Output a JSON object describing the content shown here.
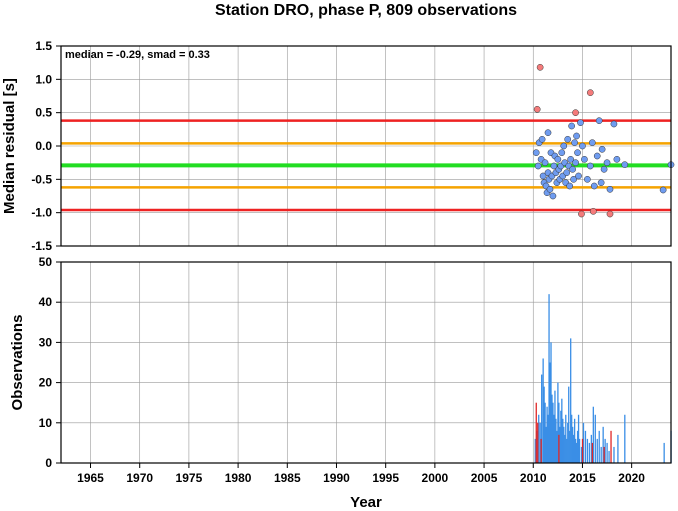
{
  "chart_data": [
    {
      "type": "scatter",
      "title": "Station DRO, phase P, 809 observations",
      "ylabel": "Median residual [s]",
      "xlim": [
        1962,
        2024
      ],
      "ylim": [
        -1.5,
        1.5
      ],
      "yticks": [
        "1.5",
        "1.0",
        "0.5",
        "0.0",
        "-0.5",
        "-1.0",
        "-1.5"
      ],
      "annotation": "median = -0.29, smad = 0.33",
      "grid": true,
      "reference_lines": [
        {
          "value": 0.38,
          "color": "#ee2222"
        },
        {
          "value": 0.04,
          "color": "#f5a300"
        },
        {
          "value": -0.29,
          "color": "#22dd22"
        },
        {
          "value": -0.62,
          "color": "#f5a300"
        },
        {
          "value": -0.96,
          "color": "#ee2222"
        }
      ],
      "series": [
        {
          "color": "#6f9cf0",
          "points": [
            [
              2010.3,
              -0.1
            ],
            [
              2010.5,
              -0.3
            ],
            [
              2010.6,
              0.05
            ],
            [
              2010.8,
              -0.2
            ],
            [
              2010.9,
              0.1
            ],
            [
              2011.0,
              -0.45
            ],
            [
              2011.1,
              -0.55
            ],
            [
              2011.2,
              -0.25
            ],
            [
              2011.3,
              -0.6
            ],
            [
              2011.4,
              -0.7
            ],
            [
              2011.5,
              0.2
            ],
            [
              2011.5,
              -0.4
            ],
            [
              2011.6,
              -0.5
            ],
            [
              2011.7,
              -0.65
            ],
            [
              2011.8,
              -0.1
            ],
            [
              2011.9,
              -0.45
            ],
            [
              2012.0,
              -0.75
            ],
            [
              2012.1,
              -0.3
            ],
            [
              2012.2,
              -0.15
            ],
            [
              2012.3,
              -0.4
            ],
            [
              2012.4,
              -0.55
            ],
            [
              2012.5,
              -0.2
            ],
            [
              2012.6,
              -0.35
            ],
            [
              2012.7,
              -0.5
            ],
            [
              2012.8,
              -0.3
            ],
            [
              2012.9,
              -0.1
            ],
            [
              2013.0,
              -0.45
            ],
            [
              2013.1,
              0.0
            ],
            [
              2013.2,
              -0.25
            ],
            [
              2013.3,
              -0.55
            ],
            [
              2013.4,
              -0.4
            ],
            [
              2013.5,
              0.1
            ],
            [
              2013.6,
              -0.3
            ],
            [
              2013.7,
              -0.6
            ],
            [
              2013.8,
              -0.2
            ],
            [
              2013.9,
              0.3
            ],
            [
              2014.0,
              -0.35
            ],
            [
              2014.1,
              -0.5
            ],
            [
              2014.2,
              0.05
            ],
            [
              2014.3,
              -0.25
            ],
            [
              2014.4,
              0.15
            ],
            [
              2014.5,
              -0.1
            ],
            [
              2014.6,
              -0.45
            ],
            [
              2014.8,
              0.35
            ],
            [
              2015.0,
              0.0
            ],
            [
              2015.2,
              -0.2
            ],
            [
              2015.5,
              -0.5
            ],
            [
              2015.8,
              -0.3
            ],
            [
              2016.0,
              0.05
            ],
            [
              2016.2,
              -0.6
            ],
            [
              2016.5,
              -0.15
            ],
            [
              2016.7,
              0.38
            ],
            [
              2016.9,
              -0.55
            ],
            [
              2017.0,
              -0.05
            ],
            [
              2017.2,
              -0.35
            ],
            [
              2017.5,
              -0.25
            ],
            [
              2017.8,
              -0.65
            ],
            [
              2018.2,
              0.33
            ],
            [
              2018.5,
              -0.2
            ],
            [
              2019.3,
              -0.28
            ],
            [
              2023.2,
              -0.66
            ],
            [
              2024.0,
              -0.28
            ]
          ]
        },
        {
          "color": "#f47b7b",
          "points": [
            [
              2010.4,
              0.55
            ],
            [
              2010.7,
              1.18
            ],
            [
              2014.3,
              0.5
            ],
            [
              2014.9,
              -1.02
            ],
            [
              2015.8,
              0.8
            ],
            [
              2016.1,
              -0.98
            ],
            [
              2017.8,
              -1.02
            ]
          ]
        }
      ]
    },
    {
      "type": "bar",
      "xlabel": "Year",
      "ylabel": "Observations",
      "xlim": [
        1962,
        2024
      ],
      "ylim": [
        0,
        50
      ],
      "xticks": [
        "1965",
        "1970",
        "1975",
        "1980",
        "1985",
        "1990",
        "1995",
        "2000",
        "2005",
        "2010",
        "2015",
        "2020"
      ],
      "yticks": [
        "50",
        "40",
        "30",
        "20",
        "10",
        "0"
      ],
      "grid": true,
      "series": [
        {
          "color": "#3a8ee6",
          "points": [
            [
              2010.2,
              6
            ],
            [
              2010.35,
              8
            ],
            [
              2010.55,
              12
            ],
            [
              2010.7,
              10
            ],
            [
              2010.85,
              22
            ],
            [
              2011.0,
              26
            ],
            [
              2011.1,
              19
            ],
            [
              2011.2,
              15
            ],
            [
              2011.3,
              9
            ],
            [
              2011.4,
              14
            ],
            [
              2011.5,
              12
            ],
            [
              2011.6,
              42
            ],
            [
              2011.7,
              25
            ],
            [
              2011.8,
              30
            ],
            [
              2011.9,
              17
            ],
            [
              2012.0,
              15
            ],
            [
              2012.1,
              12
            ],
            [
              2012.2,
              18
            ],
            [
              2012.3,
              11
            ],
            [
              2012.4,
              8
            ],
            [
              2012.5,
              20
            ],
            [
              2012.6,
              15
            ],
            [
              2012.7,
              9
            ],
            [
              2012.8,
              13
            ],
            [
              2012.9,
              16
            ],
            [
              2013.0,
              11
            ],
            [
              2013.1,
              9
            ],
            [
              2013.2,
              7
            ],
            [
              2013.3,
              12
            ],
            [
              2013.4,
              6
            ],
            [
              2013.5,
              10
            ],
            [
              2013.6,
              19
            ],
            [
              2013.7,
              8
            ],
            [
              2013.8,
              31
            ],
            [
              2013.9,
              12
            ],
            [
              2014.0,
              9
            ],
            [
              2014.1,
              7
            ],
            [
              2014.2,
              11
            ],
            [
              2014.3,
              6
            ],
            [
              2014.4,
              5
            ],
            [
              2014.5,
              8
            ],
            [
              2014.6,
              12
            ],
            [
              2014.7,
              6
            ],
            [
              2014.9,
              4
            ],
            [
              2015.1,
              10
            ],
            [
              2015.3,
              8
            ],
            [
              2015.5,
              6
            ],
            [
              2015.7,
              5
            ],
            [
              2015.9,
              7
            ],
            [
              2016.1,
              14
            ],
            [
              2016.3,
              12
            ],
            [
              2016.5,
              6
            ],
            [
              2016.7,
              8
            ],
            [
              2016.9,
              4
            ],
            [
              2017.1,
              9
            ],
            [
              2017.3,
              6
            ],
            [
              2017.5,
              5
            ],
            [
              2017.7,
              3
            ],
            [
              2018.2,
              4
            ],
            [
              2018.6,
              7
            ],
            [
              2019.3,
              12
            ],
            [
              2023.3,
              5
            ],
            [
              2024.0,
              8
            ]
          ]
        },
        {
          "color": "#e02828",
          "points": [
            [
              2010.3,
              15
            ],
            [
              2010.45,
              10
            ],
            [
              2010.8,
              6
            ],
            [
              2012.6,
              7
            ],
            [
              2015.0,
              6
            ],
            [
              2016.0,
              5
            ],
            [
              2017.2,
              4
            ],
            [
              2017.9,
              8
            ]
          ]
        }
      ]
    }
  ]
}
